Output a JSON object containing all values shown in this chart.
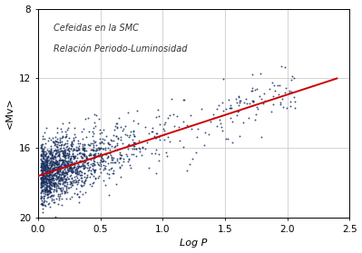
{
  "title": "",
  "xlabel": "Log P",
  "ylabel": "<Mv>",
  "annotation_line1": "Cefeidas en la SMC",
  "annotation_line2": "Relación Periodo-Luminosidad",
  "xlim": [
    0,
    2.5
  ],
  "ylim": [
    20,
    8
  ],
  "xticks": [
    0,
    0.5,
    1.0,
    1.5,
    2.0,
    2.5
  ],
  "yticks": [
    8,
    12,
    16,
    20
  ],
  "dot_color": "#1a3060",
  "dot_size": 1.8,
  "dot_alpha": 0.85,
  "line_color": "#cc0000",
  "line_x": [
    0.0,
    2.4
  ],
  "line_y": [
    17.6,
    12.0
  ],
  "background_color": "#ffffff",
  "grid_color": "#cccccc",
  "seed": 42,
  "n_main": 1400,
  "n_extra": 150,
  "scatter_slope": -2.33,
  "scatter_intercept": 17.6,
  "scatter_x_min": 0.02,
  "scatter_x_max_main": 1.1,
  "scatter_x_max_extra": 2.05,
  "scatter_spread": 0.85
}
